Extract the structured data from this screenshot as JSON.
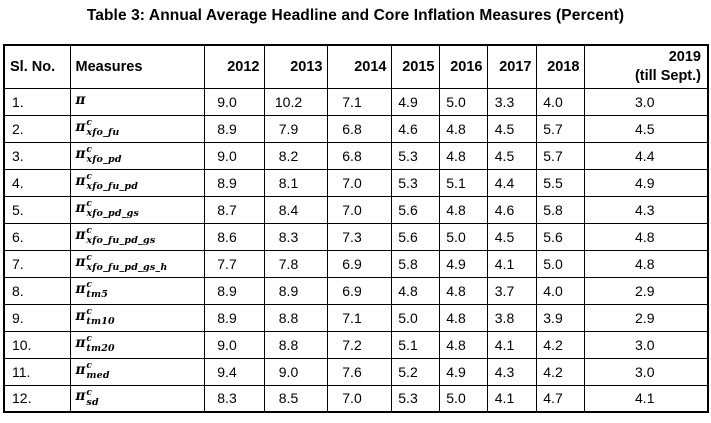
{
  "page": {
    "title": "Table 3: Annual Average Headline and Core Inflation Measures (Percent)"
  },
  "table": {
    "col_headers": {
      "sl_no": "Sl. No.",
      "measures": "Measures",
      "years": [
        "2012",
        "2013",
        "2014",
        "2015",
        "2016",
        "2017",
        "2018"
      ],
      "last_year": "2019",
      "last_year_note": "(till Sept.)"
    },
    "rows": [
      {
        "sl_no": "1.",
        "measure_base": "π",
        "measure_sup": "",
        "measure_sub": "",
        "values": [
          "9.0",
          "10.2",
          "7.1",
          "4.9",
          "5.0",
          "3.3",
          "4.0",
          "3.0"
        ]
      },
      {
        "sl_no": "2.",
        "measure_base": "π",
        "measure_sup": "c",
        "measure_sub": "xfo_fu",
        "values": [
          "8.9",
          "7.9",
          "6.8",
          "4.6",
          "4.8",
          "4.5",
          "5.7",
          "4.5"
        ]
      },
      {
        "sl_no": "3.",
        "measure_base": "π",
        "measure_sup": "c",
        "measure_sub": "xfo_pd",
        "values": [
          "9.0",
          "8.2",
          "6.8",
          "5.3",
          "4.8",
          "4.5",
          "5.7",
          "4.4"
        ]
      },
      {
        "sl_no": "4.",
        "measure_base": "π",
        "measure_sup": "c",
        "measure_sub": "xfo_fu_pd",
        "values": [
          "8.9",
          "8.1",
          "7.0",
          "5.3",
          "5.1",
          "4.4",
          "5.5",
          "4.9"
        ]
      },
      {
        "sl_no": "5.",
        "measure_base": "π",
        "measure_sup": "c",
        "measure_sub": "xfo_pd_gs",
        "values": [
          "8.7",
          "8.4",
          "7.0",
          "5.6",
          "4.8",
          "4.6",
          "5.8",
          "4.3"
        ]
      },
      {
        "sl_no": "6.",
        "measure_base": "π",
        "measure_sup": "c",
        "measure_sub": "xfo_fu_pd_gs",
        "values": [
          "8.6",
          "8.3",
          "7.3",
          "5.6",
          "5.0",
          "4.5",
          "5.6",
          "4.8"
        ]
      },
      {
        "sl_no": "7.",
        "measure_base": "π",
        "measure_sup": "c",
        "measure_sub": "xfo_fu_pd_gs_h",
        "values": [
          "7.7",
          "7.8",
          "6.9",
          "5.8",
          "4.9",
          "4.1",
          "5.0",
          "4.8"
        ]
      },
      {
        "sl_no": "8.",
        "measure_base": "π",
        "measure_sup": "c",
        "measure_sub": "tm5",
        "values": [
          "8.9",
          "8.9",
          "6.9",
          "4.8",
          "4.8",
          "3.7",
          "4.0",
          "2.9"
        ]
      },
      {
        "sl_no": "9.",
        "measure_base": "π",
        "measure_sup": "c",
        "measure_sub": "tm10",
        "values": [
          "8.9",
          "8.8",
          "7.1",
          "5.0",
          "4.8",
          "3.8",
          "3.9",
          "2.9"
        ]
      },
      {
        "sl_no": "10.",
        "measure_base": "π",
        "measure_sup": "c",
        "measure_sub": "tm20",
        "values": [
          "9.0",
          "8.8",
          "7.2",
          "5.1",
          "4.8",
          "4.1",
          "4.2",
          "3.0"
        ]
      },
      {
        "sl_no": "11.",
        "measure_base": "π",
        "measure_sup": "c",
        "measure_sub": "med",
        "values": [
          "9.4",
          "9.0",
          "7.6",
          "5.2",
          "4.9",
          "4.3",
          "4.2",
          "3.0"
        ]
      },
      {
        "sl_no": "12.",
        "measure_base": "π",
        "measure_sup": "c",
        "measure_sub": "sd",
        "values": [
          "8.3",
          "8.5",
          "7.0",
          "5.3",
          "5.0",
          "4.1",
          "4.7",
          "4.1"
        ]
      }
    ]
  },
  "colors": {
    "text": "#000000",
    "border": "#000000",
    "background": "#ffffff"
  }
}
